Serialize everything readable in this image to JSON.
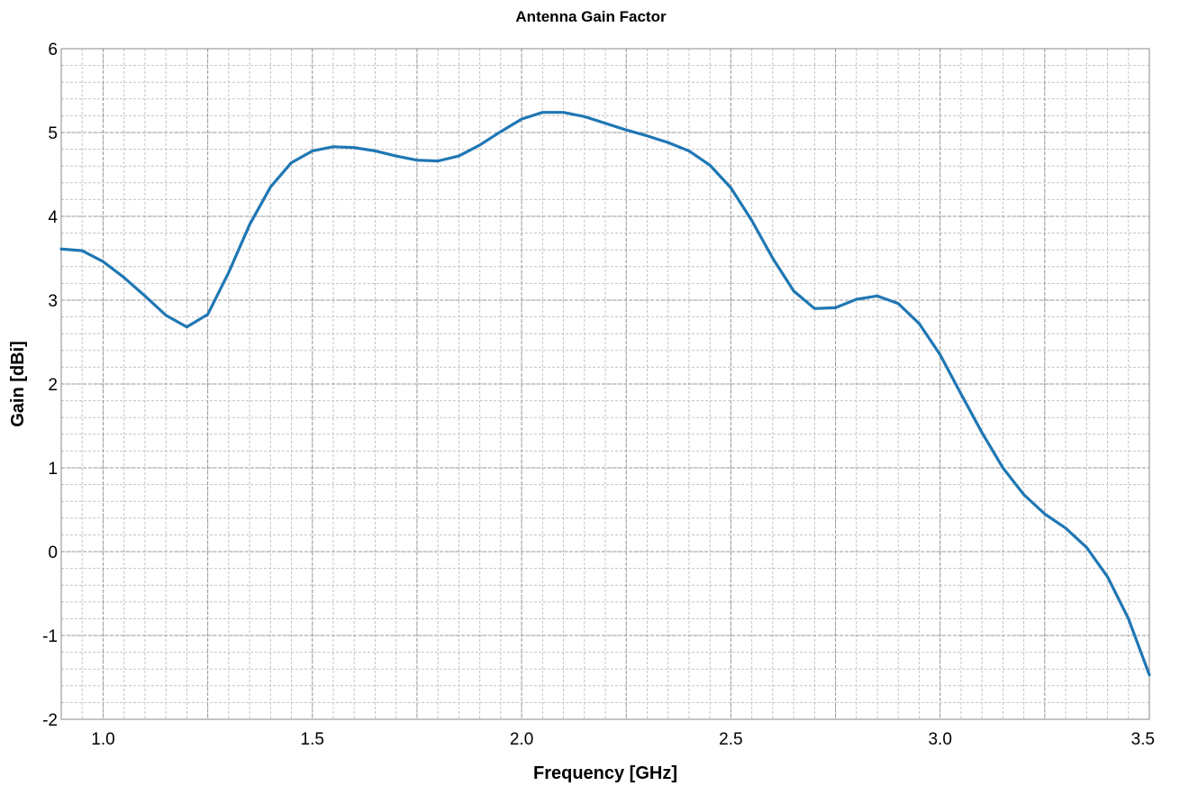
{
  "chart_data": {
    "type": "line",
    "title": "Antenna Gain Factor",
    "xlabel": "Frequency [GHz]",
    "ylabel": "Gain [dBi]",
    "xlim": [
      0.9,
      3.5
    ],
    "ylim": [
      -2,
      6
    ],
    "grid": true,
    "line_color": "#1f77b4",
    "x_ticks": [
      "1.0",
      "1.5",
      "2.0",
      "2.5",
      "3.0",
      "3.5"
    ],
    "y_ticks": [
      "-2",
      "-1",
      "0",
      "1",
      "2",
      "3",
      "4",
      "5",
      "6"
    ],
    "series": [
      {
        "x": [
          0.9,
          0.95,
          1.0,
          1.05,
          1.1,
          1.15,
          1.2,
          1.25,
          1.3,
          1.35,
          1.4,
          1.45,
          1.5,
          1.55,
          1.6,
          1.65,
          1.7,
          1.75,
          1.8,
          1.85,
          1.9,
          1.95,
          2.0,
          2.05,
          2.1,
          2.15,
          2.2,
          2.25,
          2.3,
          2.35,
          2.4,
          2.45,
          2.5,
          2.55,
          2.6,
          2.65,
          2.7,
          2.75,
          2.8,
          2.85,
          2.9,
          2.95,
          3.0,
          3.05,
          3.1,
          3.15,
          3.2,
          3.25,
          3.3,
          3.35,
          3.4,
          3.45,
          3.5
        ],
        "values": [
          3.61,
          3.59,
          3.46,
          3.27,
          3.05,
          2.82,
          2.68,
          2.83,
          3.33,
          3.9,
          4.35,
          4.64,
          4.78,
          4.83,
          4.82,
          4.78,
          4.72,
          4.67,
          4.66,
          4.72,
          4.85,
          5.01,
          5.16,
          5.24,
          5.24,
          5.19,
          5.11,
          5.03,
          4.96,
          4.88,
          4.78,
          4.61,
          4.34,
          3.95,
          3.5,
          3.11,
          2.9,
          2.91,
          3.01,
          3.05,
          2.96,
          2.72,
          2.35,
          1.88,
          1.42,
          1.0,
          0.68,
          0.45,
          0.28,
          0.05,
          -0.3,
          -0.8,
          -1.47
        ]
      }
    ]
  }
}
